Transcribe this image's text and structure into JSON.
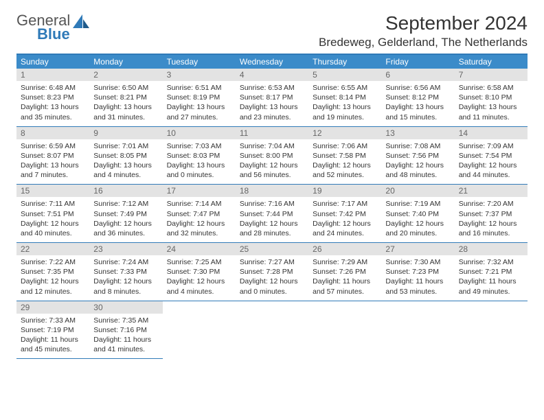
{
  "logo": {
    "word1": "General",
    "word2": "Blue"
  },
  "header": {
    "month_title": "September 2024",
    "location": "Bredeweg, Gelderland, The Netherlands"
  },
  "colors": {
    "header_band": "#3b8bc9",
    "rule": "#2f7ab8",
    "daynum_bg": "#e3e3e3",
    "text": "#333333"
  },
  "weekdays": [
    "Sunday",
    "Monday",
    "Tuesday",
    "Wednesday",
    "Thursday",
    "Friday",
    "Saturday"
  ],
  "weeks": [
    [
      {
        "n": "1",
        "sr": "Sunrise: 6:48 AM",
        "ss": "Sunset: 8:23 PM",
        "d1": "Daylight: 13 hours",
        "d2": "and 35 minutes."
      },
      {
        "n": "2",
        "sr": "Sunrise: 6:50 AM",
        "ss": "Sunset: 8:21 PM",
        "d1": "Daylight: 13 hours",
        "d2": "and 31 minutes."
      },
      {
        "n": "3",
        "sr": "Sunrise: 6:51 AM",
        "ss": "Sunset: 8:19 PM",
        "d1": "Daylight: 13 hours",
        "d2": "and 27 minutes."
      },
      {
        "n": "4",
        "sr": "Sunrise: 6:53 AM",
        "ss": "Sunset: 8:17 PM",
        "d1": "Daylight: 13 hours",
        "d2": "and 23 minutes."
      },
      {
        "n": "5",
        "sr": "Sunrise: 6:55 AM",
        "ss": "Sunset: 8:14 PM",
        "d1": "Daylight: 13 hours",
        "d2": "and 19 minutes."
      },
      {
        "n": "6",
        "sr": "Sunrise: 6:56 AM",
        "ss": "Sunset: 8:12 PM",
        "d1": "Daylight: 13 hours",
        "d2": "and 15 minutes."
      },
      {
        "n": "7",
        "sr": "Sunrise: 6:58 AM",
        "ss": "Sunset: 8:10 PM",
        "d1": "Daylight: 13 hours",
        "d2": "and 11 minutes."
      }
    ],
    [
      {
        "n": "8",
        "sr": "Sunrise: 6:59 AM",
        "ss": "Sunset: 8:07 PM",
        "d1": "Daylight: 13 hours",
        "d2": "and 7 minutes."
      },
      {
        "n": "9",
        "sr": "Sunrise: 7:01 AM",
        "ss": "Sunset: 8:05 PM",
        "d1": "Daylight: 13 hours",
        "d2": "and 4 minutes."
      },
      {
        "n": "10",
        "sr": "Sunrise: 7:03 AM",
        "ss": "Sunset: 8:03 PM",
        "d1": "Daylight: 13 hours",
        "d2": "and 0 minutes."
      },
      {
        "n": "11",
        "sr": "Sunrise: 7:04 AM",
        "ss": "Sunset: 8:00 PM",
        "d1": "Daylight: 12 hours",
        "d2": "and 56 minutes."
      },
      {
        "n": "12",
        "sr": "Sunrise: 7:06 AM",
        "ss": "Sunset: 7:58 PM",
        "d1": "Daylight: 12 hours",
        "d2": "and 52 minutes."
      },
      {
        "n": "13",
        "sr": "Sunrise: 7:08 AM",
        "ss": "Sunset: 7:56 PM",
        "d1": "Daylight: 12 hours",
        "d2": "and 48 minutes."
      },
      {
        "n": "14",
        "sr": "Sunrise: 7:09 AM",
        "ss": "Sunset: 7:54 PM",
        "d1": "Daylight: 12 hours",
        "d2": "and 44 minutes."
      }
    ],
    [
      {
        "n": "15",
        "sr": "Sunrise: 7:11 AM",
        "ss": "Sunset: 7:51 PM",
        "d1": "Daylight: 12 hours",
        "d2": "and 40 minutes."
      },
      {
        "n": "16",
        "sr": "Sunrise: 7:12 AM",
        "ss": "Sunset: 7:49 PM",
        "d1": "Daylight: 12 hours",
        "d2": "and 36 minutes."
      },
      {
        "n": "17",
        "sr": "Sunrise: 7:14 AM",
        "ss": "Sunset: 7:47 PM",
        "d1": "Daylight: 12 hours",
        "d2": "and 32 minutes."
      },
      {
        "n": "18",
        "sr": "Sunrise: 7:16 AM",
        "ss": "Sunset: 7:44 PM",
        "d1": "Daylight: 12 hours",
        "d2": "and 28 minutes."
      },
      {
        "n": "19",
        "sr": "Sunrise: 7:17 AM",
        "ss": "Sunset: 7:42 PM",
        "d1": "Daylight: 12 hours",
        "d2": "and 24 minutes."
      },
      {
        "n": "20",
        "sr": "Sunrise: 7:19 AM",
        "ss": "Sunset: 7:40 PM",
        "d1": "Daylight: 12 hours",
        "d2": "and 20 minutes."
      },
      {
        "n": "21",
        "sr": "Sunrise: 7:20 AM",
        "ss": "Sunset: 7:37 PM",
        "d1": "Daylight: 12 hours",
        "d2": "and 16 minutes."
      }
    ],
    [
      {
        "n": "22",
        "sr": "Sunrise: 7:22 AM",
        "ss": "Sunset: 7:35 PM",
        "d1": "Daylight: 12 hours",
        "d2": "and 12 minutes."
      },
      {
        "n": "23",
        "sr": "Sunrise: 7:24 AM",
        "ss": "Sunset: 7:33 PM",
        "d1": "Daylight: 12 hours",
        "d2": "and 8 minutes."
      },
      {
        "n": "24",
        "sr": "Sunrise: 7:25 AM",
        "ss": "Sunset: 7:30 PM",
        "d1": "Daylight: 12 hours",
        "d2": "and 4 minutes."
      },
      {
        "n": "25",
        "sr": "Sunrise: 7:27 AM",
        "ss": "Sunset: 7:28 PM",
        "d1": "Daylight: 12 hours",
        "d2": "and 0 minutes."
      },
      {
        "n": "26",
        "sr": "Sunrise: 7:29 AM",
        "ss": "Sunset: 7:26 PM",
        "d1": "Daylight: 11 hours",
        "d2": "and 57 minutes."
      },
      {
        "n": "27",
        "sr": "Sunrise: 7:30 AM",
        "ss": "Sunset: 7:23 PM",
        "d1": "Daylight: 11 hours",
        "d2": "and 53 minutes."
      },
      {
        "n": "28",
        "sr": "Sunrise: 7:32 AM",
        "ss": "Sunset: 7:21 PM",
        "d1": "Daylight: 11 hours",
        "d2": "and 49 minutes."
      }
    ],
    [
      {
        "n": "29",
        "sr": "Sunrise: 7:33 AM",
        "ss": "Sunset: 7:19 PM",
        "d1": "Daylight: 11 hours",
        "d2": "and 45 minutes."
      },
      {
        "n": "30",
        "sr": "Sunrise: 7:35 AM",
        "ss": "Sunset: 7:16 PM",
        "d1": "Daylight: 11 hours",
        "d2": "and 41 minutes."
      },
      null,
      null,
      null,
      null,
      null
    ]
  ]
}
